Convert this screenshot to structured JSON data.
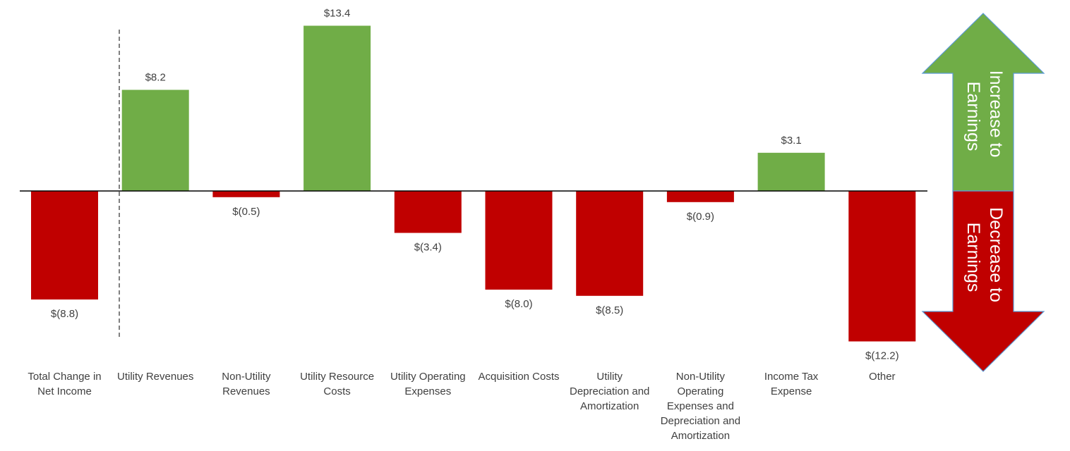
{
  "chart_data": {
    "type": "bar",
    "categories": [
      [
        "Total Change in",
        "Net Income"
      ],
      [
        "Utility Revenues"
      ],
      [
        "Non-Utility",
        "Revenues"
      ],
      [
        "Utility Resource",
        "Costs"
      ],
      [
        "Utility Operating",
        "Expenses"
      ],
      [
        "Acquisition Costs"
      ],
      [
        "Utility",
        "Depreciation and",
        "Amortization"
      ],
      [
        "Non-Utility",
        "Operating",
        "Expenses and",
        "Depreciation and",
        "Amortization"
      ],
      [
        "Income Tax",
        "Expense"
      ],
      [
        "Other"
      ]
    ],
    "values": [
      -8.8,
      8.2,
      -0.5,
      13.4,
      -3.4,
      -8.0,
      -8.5,
      -0.9,
      3.1,
      -12.2
    ],
    "value_labels": [
      "$(8.8)",
      "$8.2",
      "$(0.5)",
      "$13.4",
      "$(3.4)",
      "$(8.0)",
      "$(8.5)",
      "$(0.9)",
      "$3.1",
      "$(12.2)"
    ],
    "title": "",
    "xlabel": "",
    "ylabel": "",
    "ylim": [
      -12.2,
      13.4
    ],
    "grid": false,
    "colors": {
      "positive": "#70AD47",
      "negative": "#C00000"
    }
  },
  "legend_arrow": {
    "increase_lines": [
      "Increase to",
      "Earnings"
    ],
    "decrease_lines": [
      "Decrease to",
      "Earnings"
    ],
    "increase_color": "#70AD47",
    "decrease_color": "#C00000",
    "outline_color": "#5B9BD5"
  }
}
